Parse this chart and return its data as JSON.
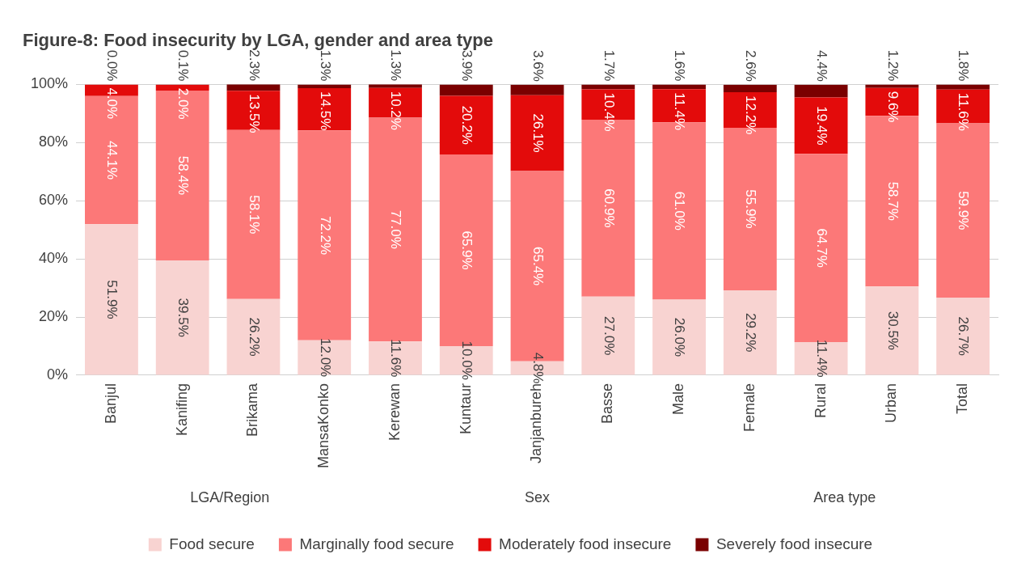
{
  "chart_data": {
    "type": "bar",
    "stacked": true,
    "title": "Figure-8: Food insecurity by LGA, gender and area type",
    "categories": [
      "Banjul",
      "Kanifing",
      "Brikama",
      "MansaKonko",
      "Kerewan",
      "Kuntaur",
      "Janjanbureh",
      "Basse",
      "Male",
      "Female",
      "Rural",
      "Urban",
      "Total"
    ],
    "series": [
      {
        "name": "Food secure",
        "color": "#f8d3d1",
        "values": [
          51.9,
          39.5,
          26.2,
          12.0,
          11.6,
          10.0,
          4.8,
          27.0,
          26.0,
          29.2,
          11.4,
          30.5,
          26.7
        ],
        "value_labels": [
          "51.9%",
          "39.5%",
          "26.2%",
          "12.0%",
          "11.6%",
          "10.0%",
          "4.8%",
          "27.0%",
          "26.0%",
          "29.2%",
          "11.4%",
          "30.5%",
          "26.7%"
        ]
      },
      {
        "name": "Marginally food secure",
        "color": "#fc7878",
        "values": [
          44.1,
          58.4,
          58.1,
          72.2,
          77.0,
          65.9,
          65.4,
          60.9,
          61.0,
          55.9,
          64.7,
          58.7,
          59.9
        ],
        "value_labels": [
          "44.1%",
          "58.4%",
          "58.1%",
          "72.2%",
          "77.0%",
          "65.9%",
          "65.4%",
          "60.9%",
          "61.0%",
          "55.9%",
          "64.7%",
          "58.7%",
          "59.9%"
        ]
      },
      {
        "name": "Moderately food insecure",
        "color": "#e30b0b",
        "values": [
          4.0,
          2.0,
          13.5,
          14.5,
          10.2,
          20.2,
          26.1,
          10.4,
          11.4,
          12.2,
          19.4,
          9.6,
          11.6
        ],
        "value_labels": [
          "4.0%",
          "2.0%",
          "13.5%",
          "14.5%",
          "10.2%",
          "20.2%",
          "26.1%",
          "10.4%",
          "11.4%",
          "12.2%",
          "19.4%",
          "9.6%",
          "11.6%"
        ]
      },
      {
        "name": "Severely food insecure",
        "color": "#7a0000",
        "values": [
          0.0,
          0.1,
          2.3,
          1.3,
          1.3,
          3.9,
          3.6,
          1.7,
          1.6,
          2.6,
          4.4,
          1.2,
          1.8
        ],
        "value_labels": [
          "0.0%",
          "0.1%",
          "2.3%",
          "1.3%",
          "1.3%",
          "3.9%",
          "3.6%",
          "1.7%",
          "1.6%",
          "2.6%",
          "4.4%",
          "1.2%",
          "1.8%"
        ]
      }
    ],
    "ylim": [
      0,
      100
    ],
    "yticks": [
      {
        "value": 0,
        "label": "0%"
      },
      {
        "value": 20,
        "label": "20%"
      },
      {
        "value": 40,
        "label": "40%"
      },
      {
        "value": 60,
        "label": "60%"
      },
      {
        "value": 80,
        "label": "80%"
      },
      {
        "value": 100,
        "label": "100%"
      }
    ],
    "grid": "y",
    "legend": "bottom",
    "annotations": [
      "LGA/Region",
      "Sex",
      "Area type"
    ]
  }
}
